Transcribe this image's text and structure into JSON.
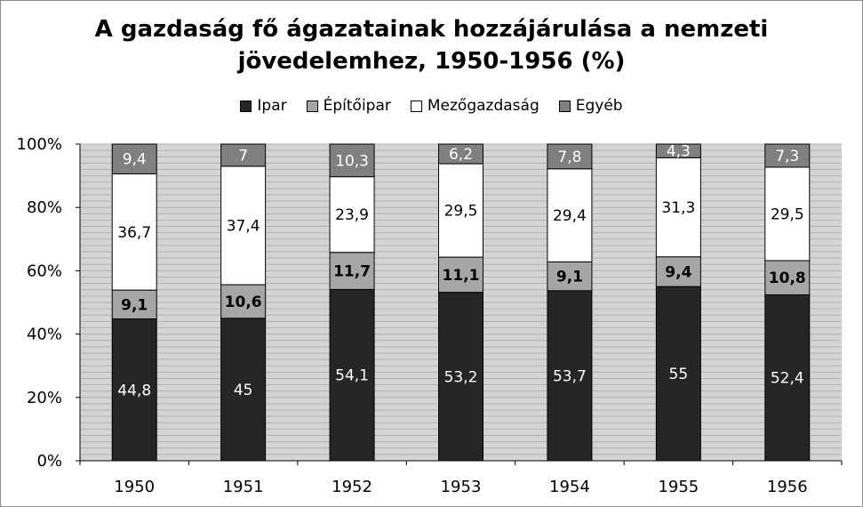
{
  "chart_data": {
    "type": "bar",
    "stacked": true,
    "percent": true,
    "title_line1": "A gazdaság fő ágazatainak hozzájárulása a nemzeti",
    "title_line2": "jövedelemhez, 1950-1956 (%)",
    "categories": [
      "1950",
      "1951",
      "1952",
      "1953",
      "1954",
      "1955",
      "1956"
    ],
    "y_ticks": [
      "0%",
      "20%",
      "40%",
      "60%",
      "80%",
      "100%"
    ],
    "ylim": [
      0,
      100
    ],
    "grid": true,
    "legend_position": "top",
    "series": [
      {
        "name": "Ipar",
        "color": "#262626",
        "label_color": "#ffffff",
        "labels": [
          "44,8",
          "45",
          "54,1",
          "53,2",
          "53,7",
          "55",
          "52,4"
        ],
        "values": [
          44.8,
          45,
          54.1,
          53.2,
          53.7,
          55,
          52.4
        ]
      },
      {
        "name": "Építőipar",
        "color": "#a6a6a6",
        "label_color": "#000000",
        "labels": [
          "9,1",
          "10,6",
          "11,7",
          "11,1",
          "9,1",
          "9,4",
          "10,8"
        ],
        "values": [
          9.1,
          10.6,
          11.7,
          11.1,
          9.1,
          9.4,
          10.8
        ]
      },
      {
        "name": "Mezőgazdaság",
        "color": "#ffffff",
        "label_color": "#000000",
        "labels": [
          "36,7",
          "37,4",
          "23,9",
          "29,5",
          "29,4",
          "31,3",
          "29,5"
        ],
        "values": [
          36.7,
          37.4,
          23.9,
          29.5,
          29.4,
          31.3,
          29.5
        ]
      },
      {
        "name": "Egyéb",
        "color": "#808080",
        "label_color": "#ffffff",
        "labels": [
          "9,4",
          "7",
          "10,3",
          "6,2",
          "7,8",
          "4,3",
          "7,3"
        ],
        "values": [
          9.4,
          7,
          10.3,
          6.2,
          7.8,
          4.3,
          7.3
        ]
      }
    ]
  }
}
